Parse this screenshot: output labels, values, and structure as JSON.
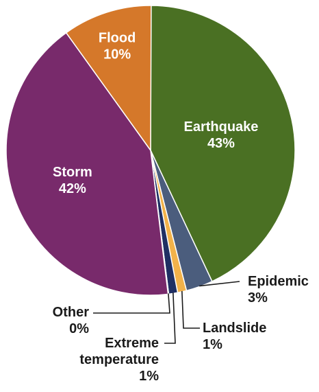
{
  "chart_data": {
    "type": "pie",
    "start_angle_deg": 0,
    "direction": "clockwise",
    "slices": [
      {
        "label": "Earthquake",
        "value": 43,
        "value_label": "43%",
        "color": "#4a7023",
        "label_placement": "inside"
      },
      {
        "label": "Epidemic",
        "value": 3,
        "value_label": "3%",
        "color": "#4b5d7d",
        "label_placement": "outside"
      },
      {
        "label": "Landslide",
        "value": 1,
        "value_label": "1%",
        "color": "#f2b24a",
        "label_placement": "outside"
      },
      {
        "label": "Extreme temperature",
        "value": 1,
        "value_label": "1%",
        "color": "#1f2f63",
        "label_placement": "outside"
      },
      {
        "label": "Other",
        "value": 0,
        "value_label": "0%",
        "color": "#c2185b",
        "label_placement": "outside"
      },
      {
        "label": "Storm",
        "value": 42,
        "value_label": "42%",
        "color": "#782a6b",
        "label_placement": "inside"
      },
      {
        "label": "Flood",
        "value": 10,
        "value_label": "10%",
        "color": "#d5782a",
        "label_placement": "inside"
      }
    ]
  }
}
